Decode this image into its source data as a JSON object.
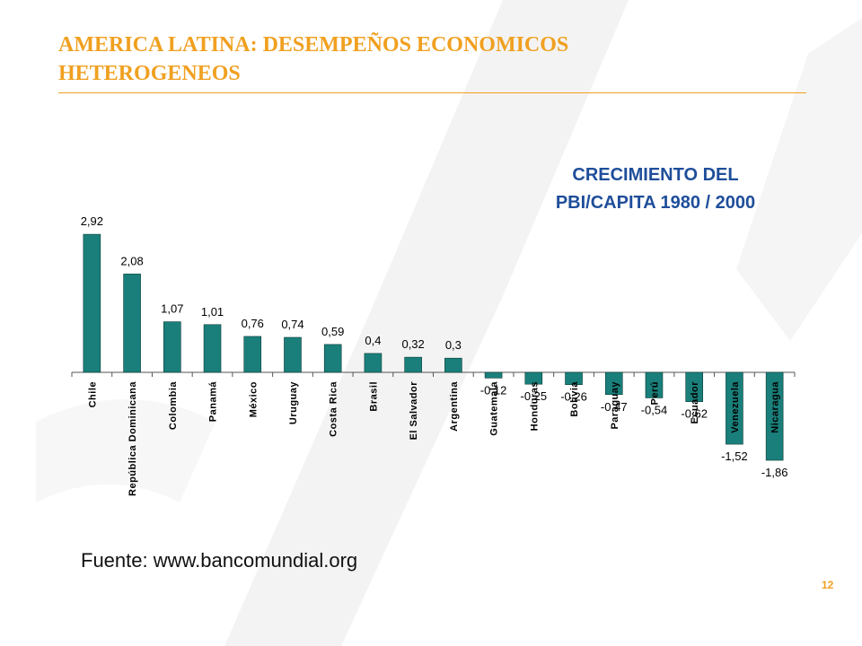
{
  "slide": {
    "title_line1": "AMERICA LATINA: DESEMPEÑOS ECONOMICOS",
    "title_line2": "HETEROGENEOS",
    "chart_title_line1": "CRECIMIENTO DEL",
    "chart_title_line2": "PBI/CAPITA 1980 / 2000",
    "source": "Fuente: www.bancomundial.org",
    "page_number": "12"
  },
  "colors": {
    "accent": "#f0a020",
    "bar": "#1a7f7a",
    "chart_title": "#1f4e9a"
  },
  "chart_data": {
    "type": "bar",
    "title": "CRECIMIENTO DEL PBI/CAPITA 1980 / 2000",
    "categories": [
      "Chile",
      "República Dominicana",
      "Colombia",
      "Panamá",
      "México",
      "Uruguay",
      "Costa Rica",
      "Brasil",
      "El Salvador",
      "Argentina",
      "Guatemala",
      "Honduras",
      "Bolivia",
      "Paraguay",
      "Perú",
      "Ecuador",
      "Venezuela",
      "Nicaragua"
    ],
    "values": [
      2.92,
      2.08,
      1.07,
      1.01,
      0.76,
      0.74,
      0.59,
      0.4,
      0.32,
      0.3,
      -0.12,
      -0.25,
      -0.26,
      -0.47,
      -0.54,
      -0.62,
      -1.52,
      -1.86
    ],
    "value_labels": [
      "2,92",
      "2,08",
      "1,07",
      "1,01",
      "0,76",
      "0,74",
      "0,59",
      "0,4",
      "0,32",
      "0,3",
      "-0,12",
      "-0,25",
      "-0,26",
      "-0,47",
      "-0,54",
      "-0,62",
      "-1,52",
      "-1,86"
    ],
    "xlabel": "",
    "ylabel": "",
    "legend": "none",
    "grid": false
  }
}
